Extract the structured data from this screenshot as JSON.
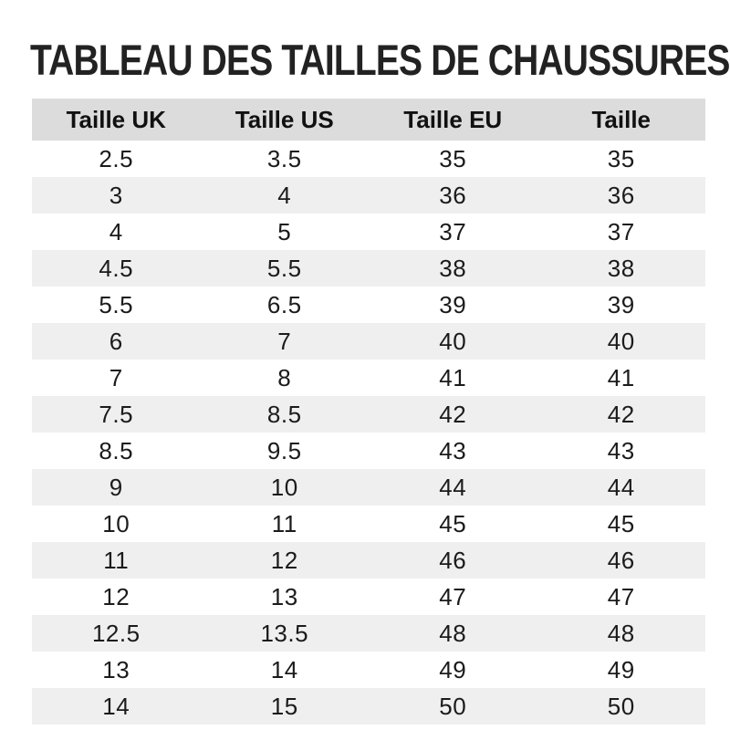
{
  "title": "TABLEAU DES TAILLES DE CHAUSSURES",
  "colors": {
    "header_bg": "#dcdcdc",
    "stripe_bg": "#efefef",
    "title_color": "#222222",
    "text_color": "#1b1b1b",
    "page_bg": "#ffffff"
  },
  "chart_data": {
    "type": "table",
    "title": "TABLEAU DES TAILLES DE CHAUSSURES",
    "columns": [
      "Taille UK",
      "Taille US",
      "Taille EU",
      "Taille"
    ],
    "rows": [
      [
        "2.5",
        "3.5",
        "35",
        "35"
      ],
      [
        "3",
        "4",
        "36",
        "36"
      ],
      [
        "4",
        "5",
        "37",
        "37"
      ],
      [
        "4.5",
        "5.5",
        "38",
        "38"
      ],
      [
        "5.5",
        "6.5",
        "39",
        "39"
      ],
      [
        "6",
        "7",
        "40",
        "40"
      ],
      [
        "7",
        "8",
        "41",
        "41"
      ],
      [
        "7.5",
        "8.5",
        "42",
        "42"
      ],
      [
        "8.5",
        "9.5",
        "43",
        "43"
      ],
      [
        "9",
        "10",
        "44",
        "44"
      ],
      [
        "10",
        "11",
        "45",
        "45"
      ],
      [
        "11",
        "12",
        "46",
        "46"
      ],
      [
        "12",
        "13",
        "47",
        "47"
      ],
      [
        "12.5",
        "13.5",
        "48",
        "48"
      ],
      [
        "13",
        "14",
        "49",
        "49"
      ],
      [
        "14",
        "15",
        "50",
        "50"
      ]
    ],
    "layout": {
      "zebra_striping": true,
      "first_data_row_background": "white",
      "text_alignment": "center",
      "grid": false
    }
  }
}
